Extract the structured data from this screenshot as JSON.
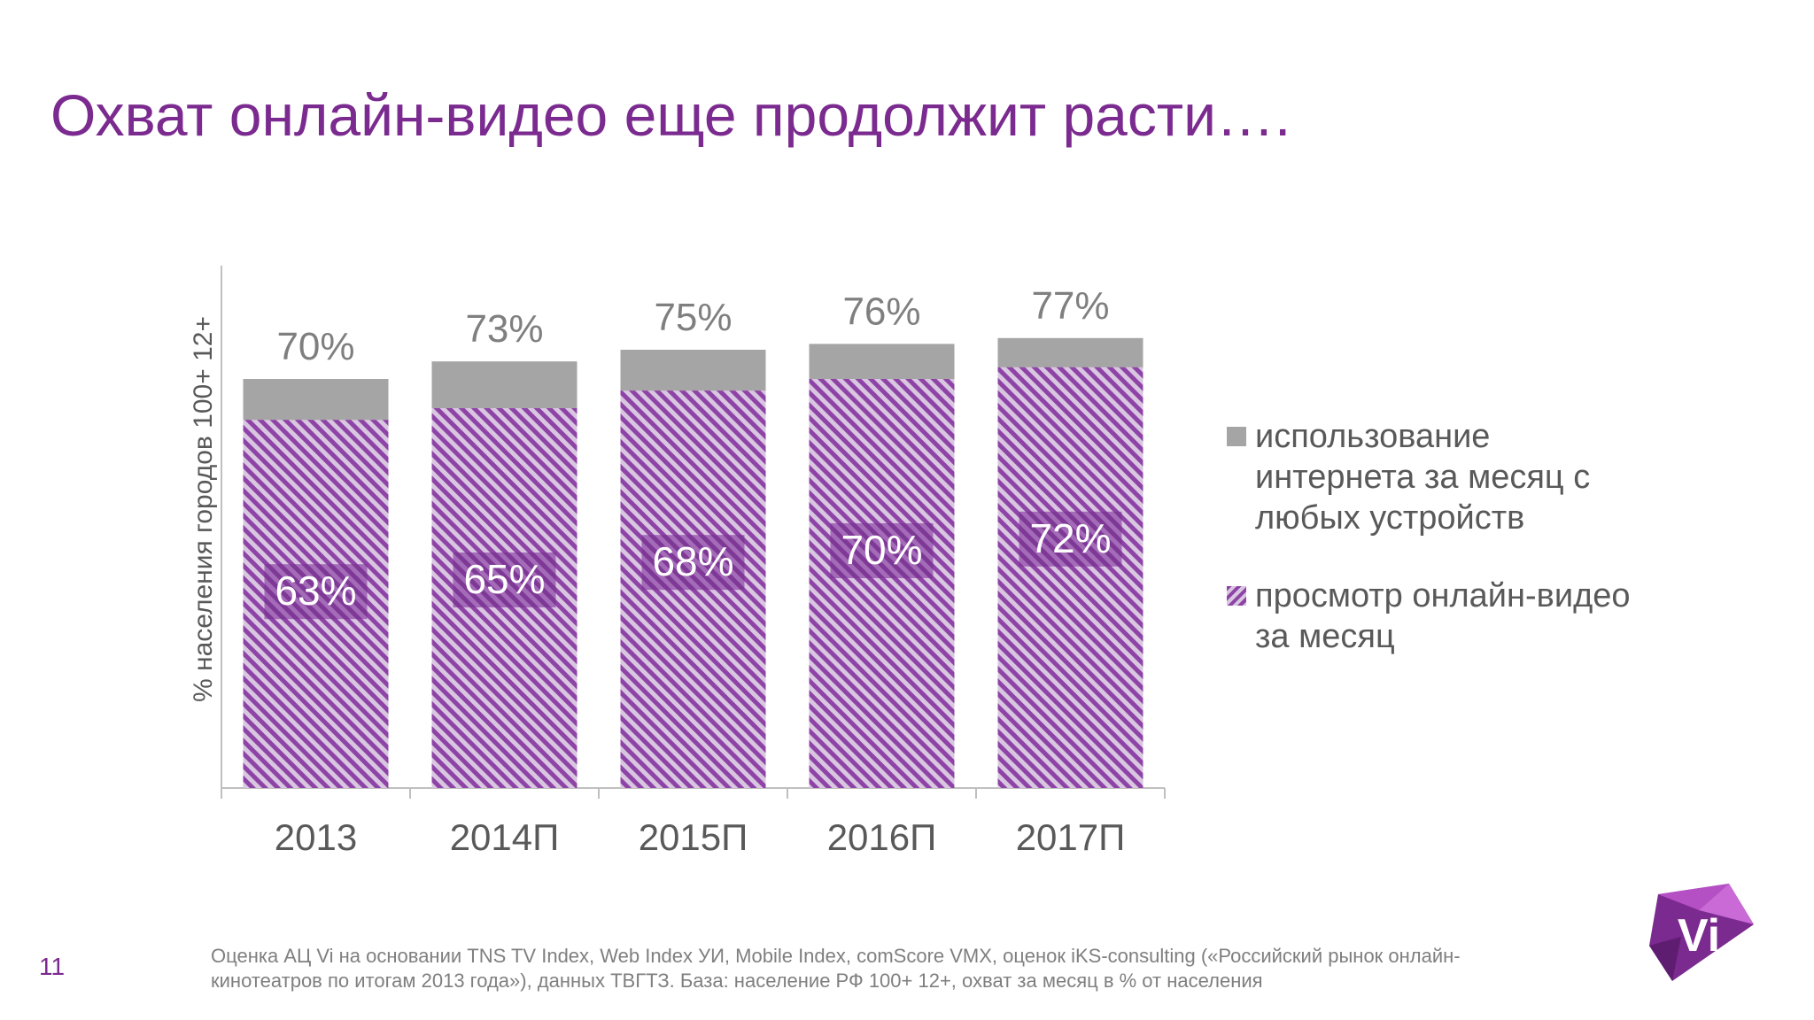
{
  "title": "Охват онлайн-видео еще продолжит расти….",
  "page_number": "11",
  "footnote": "Оценка АЦ Vi на основании TNS TV Index, Web Index УИ, Mobile Index, comScore VMX, оценок iKS-consulting («Российский рынок онлайн-кинотеатров по итогам 2013 года»), данных ТВГТЗ. База: население РФ 100+ 12+, охват за месяц в % от населения",
  "logo_text": "Vi",
  "colors": {
    "title": "#7b2a8f",
    "grey_series": "#a6a5a6",
    "purple_series": "#8e44a6",
    "purple_hatch_light": "#d9c6e0",
    "axis": "#bfbfbf",
    "text": "#595959"
  },
  "chart_data": {
    "type": "bar",
    "stacked": false,
    "overlapping": true,
    "categories": [
      "2013",
      "2014П",
      "2015П",
      "2016П",
      "2017П"
    ],
    "series": [
      {
        "name": "использование интернета за месяц с любых устройств",
        "values": [
          70,
          73,
          75,
          76,
          77
        ],
        "labels": [
          "70%",
          "73%",
          "75%",
          "76%",
          "77%"
        ],
        "color": "#a6a5a6"
      },
      {
        "name": "просмотр онлайн-видео за месяц",
        "values": [
          63,
          65,
          68,
          70,
          72
        ],
        "labels": [
          "63%",
          "65%",
          "68%",
          "70%",
          "72%"
        ],
        "color": "#8e44a6",
        "pattern": "diagonal-hatch"
      }
    ],
    "ylabel": "% населения городов 100+ 12+",
    "xlabel": "",
    "ylim": [
      0,
      90
    ],
    "grid": false,
    "legend_position": "right"
  }
}
